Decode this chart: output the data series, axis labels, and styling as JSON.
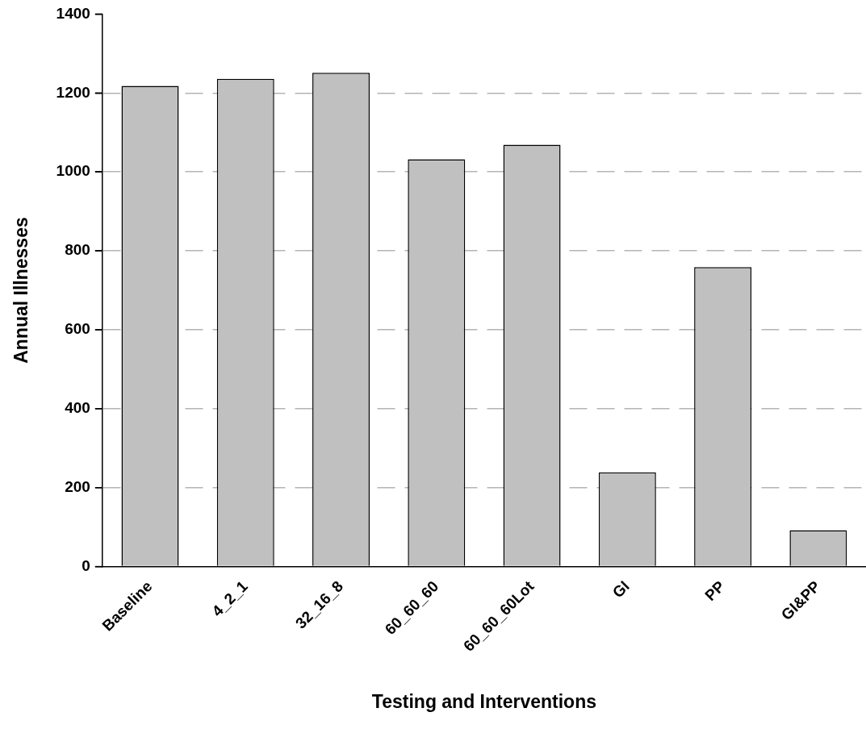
{
  "chart_data": {
    "type": "bar",
    "xlabel": "Testing and Interventions",
    "ylabel": "Annual Illnesses",
    "categories": [
      "Baseline",
      "4_2_1",
      "32_16_8",
      "60_60_60",
      "60_60_60Lot",
      "GI",
      "PP",
      "GI&PP"
    ],
    "values": [
      1218,
      1236,
      1251,
      1032,
      1069,
      239,
      759,
      92
    ],
    "color": "#c0c0c0",
    "ylim": [
      0,
      1400
    ],
    "yticks": [
      0,
      200,
      400,
      600,
      800,
      1000,
      1200,
      1400
    ],
    "grid": "y",
    "legend": false
  }
}
